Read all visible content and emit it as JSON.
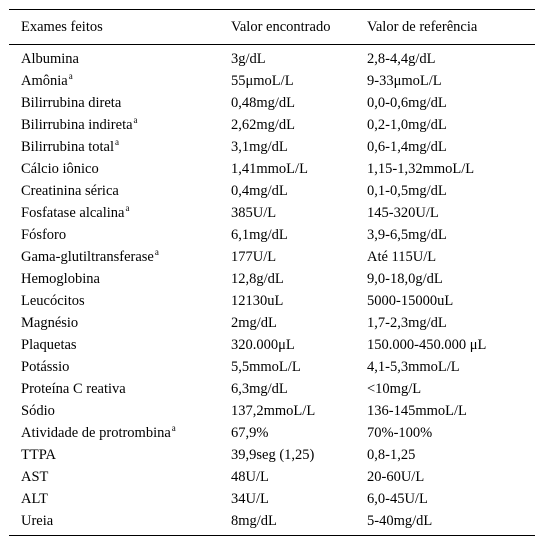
{
  "table": {
    "headers": [
      "Exames feitos",
      "Valor encontrado",
      "Valor de referência"
    ],
    "rows": [
      {
        "exam": "Albumina",
        "note": "",
        "value": "3g/dL",
        "reference": "2,8-4,4g/dL"
      },
      {
        "exam": "Amônia",
        "note": "a",
        "value": "55μmoL/L",
        "reference": "9-33μmoL/L"
      },
      {
        "exam": "Bilirrubina direta",
        "note": "",
        "value": "0,48mg/dL",
        "reference": "0,0-0,6mg/dL"
      },
      {
        "exam": "Bilirrubina indireta",
        "note": "a",
        "value": "2,62mg/dL",
        "reference": "0,2-1,0mg/dL"
      },
      {
        "exam": "Bilirrubina total",
        "note": "a",
        "value": "3,1mg/dL",
        "reference": "0,6-1,4mg/dL"
      },
      {
        "exam": "Cálcio iônico",
        "note": "",
        "value": "1,41mmoL/L",
        "reference": "1,15-1,32mmoL/L"
      },
      {
        "exam": "Creatinina sérica",
        "note": "",
        "value": "0,4mg/dL",
        "reference": "0,1-0,5mg/dL"
      },
      {
        "exam": "Fosfatase alcalina",
        "note": "a",
        "value": "385U/L",
        "reference": "145-320U/L"
      },
      {
        "exam": "Fósforo",
        "note": "",
        "value": "6,1mg/dL",
        "reference": "3,9-6,5mg/dL"
      },
      {
        "exam": "Gama-glutiltransferase",
        "note": "a",
        "value": "177U/L",
        "reference": "Até 115U/L"
      },
      {
        "exam": "Hemoglobina",
        "note": "",
        "value": "12,8g/dL",
        "reference": "9,0-18,0g/dL"
      },
      {
        "exam": "Leucócitos",
        "note": "",
        "value": "12130uL",
        "reference": "5000-15000uL"
      },
      {
        "exam": "Magnésio",
        "note": "",
        "value": "2mg/dL",
        "reference": "1,7-2,3mg/dL"
      },
      {
        "exam": "Plaquetas",
        "note": "",
        "value": "320.000μL",
        "reference": "150.000-450.000 μL"
      },
      {
        "exam": "Potássio",
        "note": "",
        "value": "5,5mmoL/L",
        "reference": "4,1-5,3mmoL/L"
      },
      {
        "exam": "Proteína C reativa",
        "note": "",
        "value": "6,3mg/dL",
        "reference": "<10mg/L"
      },
      {
        "exam": "Sódio",
        "note": "",
        "value": "137,2mmoL/L",
        "reference": "136-145mmoL/L"
      },
      {
        "exam": "Atividade de protrombina",
        "note": "a",
        "value": "67,9%",
        "reference": "70%-100%"
      },
      {
        "exam": "TTPA",
        "note": "",
        "value": "39,9seg (1,25)",
        "reference": "0,8-1,25"
      },
      {
        "exam": "AST",
        "note": "",
        "value": "48U/L",
        "reference": "20-60U/L"
      },
      {
        "exam": "ALT",
        "note": "",
        "value": "34U/L",
        "reference": "6,0-45U/L"
      },
      {
        "exam": "Ureia",
        "note": "",
        "value": "8mg/dL",
        "reference": "5-40mg/dL"
      }
    ]
  }
}
